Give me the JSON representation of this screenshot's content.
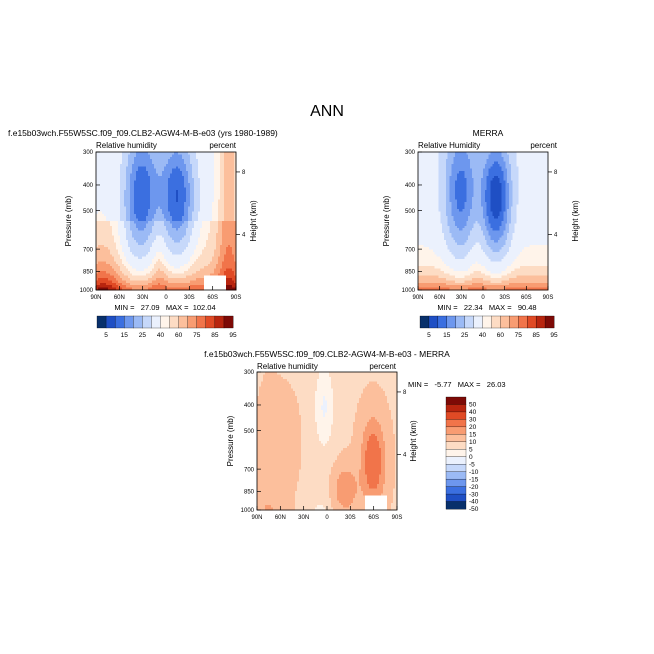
{
  "page": {
    "title": "ANN"
  },
  "colors": {
    "scale": [
      "#08306b",
      "#1f4fc4",
      "#3b6fe0",
      "#6d97ee",
      "#9bbaf5",
      "#c6d8fa",
      "#ebf1fd",
      "#fff4ea",
      "#fddcc4",
      "#fcbf9c",
      "#f89c72",
      "#f1744a",
      "#e04a25",
      "#b8250f",
      "#7d0a06"
    ]
  },
  "chart_data": [
    {
      "type": "heatmap",
      "title": "f.e15b03wch.F55W5SC.f09_f09.CLB2-AGW4-M-B-e03 (yrs 1980-1989)",
      "subtitle_left": "Relative humidity",
      "subtitle_right": "percent",
      "xlabel": "",
      "ylabel": "Pressure (mb)",
      "ylabel_right": "Height (km)",
      "x_ticks": [
        "90N",
        "60N",
        "30N",
        "0",
        "30S",
        "60S",
        "90S"
      ],
      "y_ticks": [
        "300",
        "400",
        "500",
        "700",
        "850",
        "1000"
      ],
      "y_ticks_right": [
        "8",
        "4"
      ],
      "ylim": [
        1000,
        300
      ],
      "stats": "MIN =   27.09   MAX =  102.04",
      "colorbar_labels": [
        "5",
        "15",
        "25",
        "40",
        "60",
        "75",
        "85",
        "95"
      ]
    },
    {
      "type": "heatmap",
      "title": "MERRA",
      "subtitle_left": "Relative Humidity",
      "subtitle_right": "percent",
      "xlabel": "",
      "ylabel": "Pressure (mb)",
      "ylabel_right": "Height (km)",
      "x_ticks": [
        "90N",
        "60N",
        "30N",
        "0",
        "30S",
        "60S",
        "90S"
      ],
      "y_ticks": [
        "300",
        "400",
        "500",
        "700",
        "850",
        "1000"
      ],
      "y_ticks_right": [
        "8",
        "4"
      ],
      "ylim": [
        1000,
        300
      ],
      "stats": "MIN =   22.34   MAX =   90.48",
      "colorbar_labels": [
        "5",
        "15",
        "25",
        "40",
        "60",
        "75",
        "85",
        "95"
      ]
    },
    {
      "type": "heatmap",
      "title": "f.e15b03wch.F55W5SC.f09_f09.CLB2-AGW4-M-B-e03 - MERRA",
      "subtitle_left": "Relative humidity",
      "subtitle_right": "percent",
      "xlabel": "",
      "ylabel": "Pressure (mb)",
      "ylabel_right": "Height (km)",
      "x_ticks": [
        "90N",
        "60N",
        "30N",
        "0",
        "30S",
        "60S",
        "90S"
      ],
      "y_ticks": [
        "300",
        "400",
        "500",
        "700",
        "850",
        "1000"
      ],
      "y_ticks_right": [
        "8",
        "4"
      ],
      "ylim": [
        1000,
        300
      ],
      "stats": "MIN =   -5.77   MAX =   26.03",
      "colorbar_labels": [
        "50",
        "40",
        "30",
        "20",
        "15",
        "10",
        "5",
        "0",
        "-5",
        "-10",
        "-15",
        "-20",
        "-30",
        "-40",
        "-50"
      ]
    }
  ]
}
